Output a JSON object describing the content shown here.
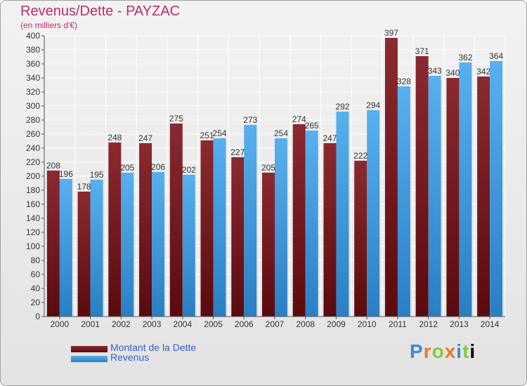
{
  "title": "Revenus/Dette - PAYZAC",
  "subtitle": "(en milliers d'€)",
  "colors": {
    "dette": "#7a1c22",
    "revenus": "#3d9be0",
    "title": "#b5306a",
    "legend_text": "#3c5cc8"
  },
  "legend": [
    {
      "label": "Montant de la Dette",
      "color": "#7a1c22"
    },
    {
      "label": "Revenus",
      "color": "#3d9be0"
    }
  ],
  "logo_text": "Proxiti",
  "chart_data": {
    "type": "bar",
    "title": "Revenus/Dette - PAYZAC",
    "subtitle": "(en milliers d'€)",
    "categories": [
      "2000",
      "2001",
      "2002",
      "2003",
      "2004",
      "2005",
      "2006",
      "2007",
      "2008",
      "2009",
      "2010",
      "2011",
      "2012",
      "2013",
      "2014"
    ],
    "series": [
      {
        "name": "Montant de la Dette",
        "values": [
          208,
          178,
          248,
          247,
          275,
          251,
          227,
          205,
          274,
          247,
          222,
          397,
          371,
          340,
          342
        ]
      },
      {
        "name": "Revenus",
        "values": [
          196,
          195,
          205,
          206,
          202,
          254,
          273,
          254,
          265,
          292,
          294,
          328,
          343,
          362,
          364
        ]
      }
    ],
    "ylim": [
      0,
      400
    ],
    "yticks": [
      0,
      20,
      40,
      60,
      80,
      100,
      120,
      140,
      160,
      180,
      200,
      220,
      240,
      260,
      280,
      300,
      320,
      340,
      360,
      380,
      400
    ],
    "grid": true,
    "legend_position": "bottom-left"
  }
}
